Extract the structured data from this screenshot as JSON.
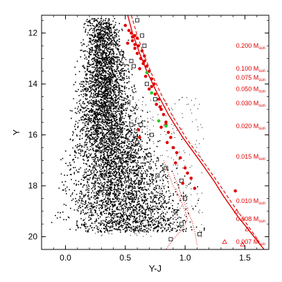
{
  "chart_data": {
    "type": "scatter",
    "title": "",
    "xlabel": "Y-J",
    "ylabel": "Y",
    "xlim": [
      -0.2,
      1.7
    ],
    "ylim": [
      20.5,
      11.3
    ],
    "y_inverted": true,
    "xticks": [
      0.0,
      0.5,
      1.0,
      1.5
    ],
    "yticks": [
      12,
      14,
      16,
      18,
      20
    ],
    "x_tick_labels": [
      "0.0",
      "0.5",
      "1.0",
      "1.5"
    ],
    "y_tick_labels": [
      "12",
      "14",
      "16",
      "18",
      "20"
    ],
    "grid": false,
    "legend": "none",
    "colors": {
      "field_stars": "#000000",
      "candidates": "#e00000",
      "green_candidates": "#22cc22",
      "open_squares": "#000000",
      "labels": "#e00000"
    },
    "field_stars": {
      "description_visible": false,
      "density_ridge": [
        [
          0.3,
          11.5
        ],
        [
          0.3,
          13.0
        ],
        [
          0.32,
          15.0
        ],
        [
          0.35,
          16.5
        ],
        [
          0.38,
          17.8
        ],
        [
          0.45,
          18.8
        ]
      ],
      "y_range": [
        11.4,
        19.8
      ]
    },
    "red_points": [
      [
        0.5,
        11.7
      ],
      [
        0.53,
        11.9
      ],
      [
        0.55,
        12.0
      ],
      [
        0.58,
        12.1
      ],
      [
        0.6,
        12.2
      ],
      [
        0.56,
        12.3
      ],
      [
        0.52,
        12.4
      ],
      [
        0.61,
        12.5
      ],
      [
        0.58,
        12.6
      ],
      [
        0.64,
        12.7
      ],
      [
        0.6,
        12.8
      ],
      [
        0.66,
        12.9
      ],
      [
        0.63,
        13.0
      ],
      [
        0.65,
        13.2
      ],
      [
        0.68,
        13.3
      ],
      [
        0.7,
        13.5
      ],
      [
        0.67,
        13.7
      ],
      [
        0.72,
        13.8
      ],
      [
        0.74,
        14.0
      ],
      [
        0.7,
        14.2
      ],
      [
        0.75,
        14.4
      ],
      [
        0.78,
        14.6
      ],
      [
        0.76,
        14.8
      ],
      [
        0.8,
        15.0
      ],
      [
        0.82,
        15.2
      ],
      [
        0.84,
        15.5
      ],
      [
        0.8,
        15.7
      ],
      [
        0.86,
        15.9
      ],
      [
        0.88,
        16.1
      ],
      [
        0.85,
        16.3
      ],
      [
        0.9,
        16.5
      ],
      [
        0.93,
        16.7
      ],
      [
        0.96,
        16.9
      ],
      [
        0.92,
        17.1
      ],
      [
        1.0,
        17.3
      ],
      [
        1.02,
        17.5
      ],
      [
        1.05,
        17.7
      ],
      [
        0.98,
        17.9
      ],
      [
        1.08,
        18.1
      ],
      [
        1.42,
        18.2
      ],
      [
        0.58,
        12.45
      ],
      [
        0.62,
        13.4
      ],
      [
        0.56,
        12.15
      ],
      [
        0.66,
        13.1
      ],
      [
        0.72,
        14.1
      ],
      [
        0.79,
        14.9
      ],
      [
        0.84,
        15.6
      ],
      [
        0.61,
        15.8
      ],
      [
        0.62,
        16.1
      ]
    ],
    "green_points": [
      [
        0.68,
        13.55
      ],
      [
        0.72,
        14.35
      ],
      [
        0.78,
        15.45
      ],
      [
        0.84,
        15.65
      ]
    ],
    "open_squares": [
      [
        0.6,
        11.5
      ],
      [
        0.64,
        12.1
      ],
      [
        0.66,
        12.5
      ],
      [
        0.47,
        12.8
      ],
      [
        0.55,
        13.1
      ],
      [
        0.57,
        13.3
      ],
      [
        0.68,
        14.0
      ],
      [
        0.75,
        14.6
      ],
      [
        0.55,
        15.6
      ],
      [
        0.63,
        15.6
      ],
      [
        0.72,
        16.0
      ],
      [
        0.6,
        16.3
      ],
      [
        0.7,
        16.8
      ],
      [
        0.84,
        17.3
      ],
      [
        0.77,
        17.6
      ],
      [
        0.97,
        17.8
      ],
      [
        1.0,
        18.5
      ],
      [
        0.92,
        19.0
      ],
      [
        0.97,
        19.5
      ],
      [
        1.12,
        19.9
      ],
      [
        0.88,
        20.1
      ]
    ],
    "open_triangles": [
      [
        1.43,
        19.0
      ],
      [
        1.52,
        19.7
      ],
      [
        1.48,
        20.3
      ],
      [
        1.33,
        20.2
      ]
    ],
    "isochrones": [
      {
        "style": "solid",
        "x": [
          0.52,
          0.56,
          0.62,
          0.68,
          0.76,
          0.86,
          0.98,
          1.12,
          1.24,
          1.32,
          1.44,
          1.56,
          1.66
        ],
        "y": [
          11.3,
          12.0,
          12.8,
          13.5,
          14.3,
          15.2,
          16.1,
          17.0,
          17.8,
          18.4,
          19.2,
          19.9,
          20.5
        ]
      },
      {
        "style": "dashed",
        "x": [
          0.55,
          0.6,
          0.66,
          0.72,
          0.8,
          0.9,
          1.02,
          1.16,
          1.28,
          1.38,
          1.5,
          1.62
        ],
        "y": [
          11.3,
          12.1,
          12.9,
          13.6,
          14.4,
          15.3,
          16.2,
          17.1,
          17.9,
          18.6,
          19.4,
          20.2
        ]
      },
      {
        "style": "dotted",
        "x": [
          0.82,
          0.86,
          0.9,
          0.96,
          1.0,
          1.02,
          0.98,
          0.9,
          0.84
        ],
        "y": [
          17.0,
          17.5,
          18.0,
          18.5,
          19.0,
          19.3,
          19.7,
          20.1,
          20.5
        ]
      },
      {
        "style": "dotted",
        "x": [
          0.9,
          0.94,
          0.98,
          1.02,
          1.06,
          1.08,
          1.1
        ],
        "y": [
          17.5,
          18.0,
          18.5,
          19.0,
          19.4,
          19.8,
          20.3
        ]
      }
    ],
    "mass_labels": [
      {
        "y": 12.5,
        "value": "0.200",
        "unit_sub": "sun"
      },
      {
        "y": 13.4,
        "value": "0.100",
        "unit_sub": "sun"
      },
      {
        "y": 13.75,
        "value": "0.075",
        "unit_sub": "sun"
      },
      {
        "y": 14.2,
        "value": "0.050",
        "unit_sub": "sun"
      },
      {
        "y": 14.75,
        "value": "0.030",
        "unit_sub": "sun"
      },
      {
        "y": 15.65,
        "value": "0.020",
        "unit_sub": "sun"
      },
      {
        "y": 16.85,
        "value": "0.015",
        "unit_sub": "sun"
      },
      {
        "y": 18.6,
        "value": "0.010",
        "unit_sub": "sun"
      },
      {
        "y": 19.3,
        "value": "0.008",
        "unit_sub": "sun"
      },
      {
        "y": 20.2,
        "value": "0.007",
        "unit_sub": "sun"
      }
    ],
    "mass_symbol": "M"
  }
}
